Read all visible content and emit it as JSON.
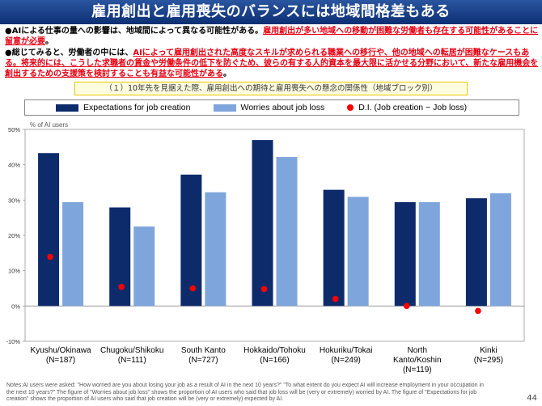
{
  "header": {
    "title": "雇用創出と雇用喪失のバランスには地域間格差もある"
  },
  "bullets": [
    {
      "mark": "●",
      "normal1": "AIによる仕事の量への影響は、地域間によって異なる可能性がある。",
      "red1": "雇用創出が多い地域への移動が困難な労働者も存在する可能性があることに留意が必要",
      "normal2": "。",
      "red2": "",
      "normal3": ""
    },
    {
      "mark": "●",
      "normal1": "総じてみると、労働者の中には、",
      "red1": "AIによって雇用創出された高度なスキルが求められる職業への移行や、他の地域への転居が困難なケースもある。",
      "normal2": "",
      "red2": "将来的には、こうした求職者の賃金や労働条件の低下を防ぐため、彼らの有する人的資本を最大限に活かせる分野において、新たな雇用機会を創出するための支援策を検討することも有益な可能性がある",
      "normal3": "。"
    }
  ],
  "subtitle": "（１）10年先を見据えた際、雇用創出への期待と雇用喪失への懸念の関係性（地域ブロック別）",
  "colors": {
    "expectations": "#0d2b6b",
    "worries": "#7ea6dc",
    "di": "#ff0000"
  },
  "chart_data": {
    "type": "bar",
    "title": "",
    "ylabel": "% of AI users",
    "ylim": [
      -10,
      50
    ],
    "yticks": [
      "50%",
      "40%",
      "30%",
      "20%",
      "10%",
      "0%",
      "-10%"
    ],
    "categories": [
      [
        "Kyushu/Okinawa",
        "(N=187)"
      ],
      [
        "Chugoku/Shikoku",
        "(N=111)"
      ],
      [
        "South Kanto",
        "(N=727)"
      ],
      [
        "Hokkaido/Tohoku",
        "(N=166)"
      ],
      [
        "Hokuriku/Tokai",
        "(N=249)"
      ],
      [
        "North",
        "Kanto/Koshin",
        "(N=119)"
      ],
      [
        "Kinki",
        "(N=295)"
      ]
    ],
    "series": [
      {
        "name": "Expectations for job creation",
        "kind": "bar",
        "values": [
          43.3,
          27.9,
          37.2,
          47.0,
          32.9,
          29.4,
          30.5
        ]
      },
      {
        "name": "Worries about job loss",
        "kind": "bar",
        "values": [
          29.4,
          22.5,
          32.2,
          42.2,
          30.9,
          29.4,
          31.9
        ]
      },
      {
        "name": "D.I. (Job creation − Job loss)",
        "kind": "dot",
        "values": [
          13.9,
          5.4,
          5.0,
          4.8,
          2.0,
          0.0,
          -1.4
        ]
      }
    ]
  },
  "notes": "Notes:AI users were asked: \"How worried are you about losing your job as a result of AI in the next 10 years?\" \"To what extent do you expect AI will increase employment in your occupation in the next 10 years?\" The figure of \"Worries about job loss\" shows the proportion of AI users who said that job loss will be (very or extremely) worried by AI. The figure of \"Expectations for job creation\" shows the proportion of AI users who said that job creation will be (very or extremely) expected by AI.",
  "page_number": "44"
}
